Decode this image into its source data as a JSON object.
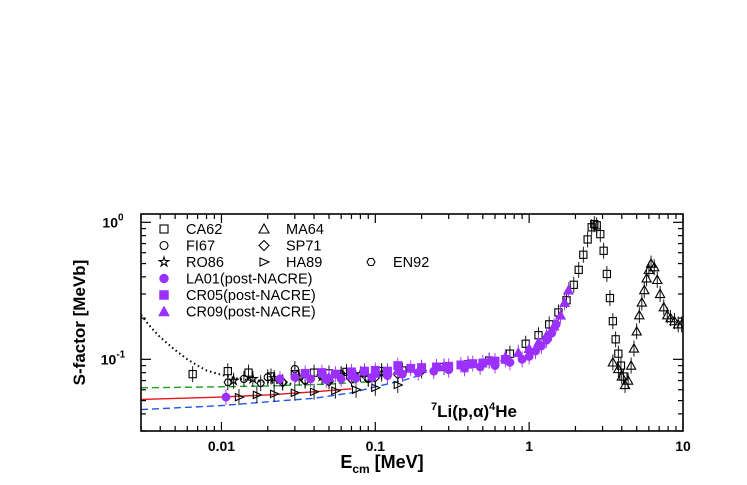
{
  "chart_data": {
    "type": "scatter",
    "title": "",
    "xlabel": {
      "base": "E",
      "sub": "cm",
      "rest": " [MeV]"
    },
    "ylabel": "S-factor [MeVb]",
    "xscale": "log",
    "yscale": "log",
    "xlim": [
      0.003,
      10
    ],
    "ylim": [
      0.03,
      1.15
    ],
    "x_ticks": [
      {
        "value": 0.01,
        "label": "0.01"
      },
      {
        "value": 0.1,
        "label": "0.1"
      },
      {
        "value": 1,
        "label": "1"
      },
      {
        "value": 10,
        "label": "10"
      }
    ],
    "y_ticks": [
      {
        "value": 0.1,
        "base": "10",
        "exp": "-1"
      },
      {
        "value": 1,
        "base": "10",
        "exp": "0"
      }
    ],
    "annotation": {
      "sup1": "7",
      "mid": "Li(p,",
      "greek": "α",
      "mid2": ")",
      "sup2": "4",
      "end": "He"
    },
    "legend_position": "top-left",
    "colors": {
      "post_nacre": "#9b30ff",
      "black": "#000000",
      "fit_red": "#e8161b",
      "fit_green": "#1e9e1e",
      "fit_blue": "#2255ee"
    },
    "series": [
      {
        "name": "CA62",
        "marker": "open-square",
        "color": "#000000",
        "points": [
          [
            0.0065,
            0.078
          ],
          [
            0.011,
            0.082
          ],
          [
            0.015,
            0.08
          ],
          [
            0.021,
            0.075
          ],
          [
            0.03,
            0.078
          ],
          [
            0.04,
            0.08
          ],
          [
            0.05,
            0.079
          ],
          [
            0.065,
            0.081
          ],
          [
            0.085,
            0.08
          ],
          [
            0.11,
            0.082
          ],
          [
            0.15,
            0.083
          ],
          [
            0.2,
            0.085
          ],
          [
            0.28,
            0.088
          ],
          [
            0.4,
            0.092
          ],
          [
            0.55,
            0.098
          ],
          [
            0.75,
            0.11
          ],
          [
            0.95,
            0.13
          ],
          [
            1.15,
            0.15
          ],
          [
            1.35,
            0.18
          ],
          [
            1.55,
            0.22
          ],
          [
            1.75,
            0.27
          ],
          [
            1.95,
            0.35
          ],
          [
            2.1,
            0.45
          ],
          [
            2.25,
            0.58
          ],
          [
            2.4,
            0.75
          ],
          [
            2.55,
            0.92
          ],
          [
            2.65,
            0.97
          ],
          [
            2.75,
            0.95
          ],
          [
            2.9,
            0.82
          ],
          [
            3.05,
            0.62
          ],
          [
            3.2,
            0.42
          ],
          [
            3.35,
            0.28
          ],
          [
            3.5,
            0.19
          ],
          [
            3.65,
            0.14
          ],
          [
            3.8,
            0.11
          ],
          [
            3.95,
            0.09
          ],
          [
            4.1,
            0.075
          ]
        ]
      },
      {
        "name": "MA64",
        "marker": "open-triangle",
        "color": "#000000",
        "points": [
          [
            3.5,
            0.095
          ],
          [
            3.8,
            0.085
          ],
          [
            4.0,
            0.075
          ],
          [
            4.2,
            0.065
          ],
          [
            4.4,
            0.07
          ],
          [
            4.6,
            0.09
          ],
          [
            4.8,
            0.12
          ],
          [
            5.0,
            0.16
          ],
          [
            5.2,
            0.21
          ],
          [
            5.4,
            0.26
          ],
          [
            5.6,
            0.32
          ],
          [
            5.8,
            0.39
          ],
          [
            6.0,
            0.45
          ],
          [
            6.2,
            0.5
          ],
          [
            6.5,
            0.47
          ],
          [
            6.8,
            0.38
          ],
          [
            7.1,
            0.3
          ],
          [
            7.5,
            0.24
          ],
          [
            7.9,
            0.21
          ],
          [
            8.3,
            0.2
          ],
          [
            8.8,
            0.19
          ],
          [
            9.3,
            0.18
          ],
          [
            9.8,
            0.18
          ]
        ]
      },
      {
        "name": "FI67",
        "marker": "open-circle",
        "color": "#000000",
        "points": [
          [
            0.014,
            0.072
          ],
          [
            0.02,
            0.074
          ],
          [
            0.03,
            0.085
          ],
          [
            0.045,
            0.075
          ],
          [
            0.06,
            0.078
          ],
          [
            0.09,
            0.072
          ],
          [
            0.12,
            0.08
          ]
        ]
      },
      {
        "name": "SP71",
        "marker": "open-diamond",
        "color": "#000000",
        "points": [
          [
            0.025,
            0.068
          ],
          [
            0.035,
            0.07
          ],
          [
            0.05,
            0.069
          ],
          [
            0.07,
            0.072
          ],
          [
            0.1,
            0.074
          ],
          [
            0.14,
            0.078
          ],
          [
            0.2,
            0.083
          ]
        ]
      },
      {
        "name": "RO86",
        "marker": "open-star",
        "color": "#000000",
        "points": [
          [
            0.012,
            0.07
          ],
          [
            0.016,
            0.072
          ],
          [
            0.022,
            0.073
          ],
          [
            0.032,
            0.074
          ],
          [
            0.045,
            0.075
          ],
          [
            0.06,
            0.077
          ],
          [
            0.08,
            0.078
          ],
          [
            0.11,
            0.079
          ]
        ]
      },
      {
        "name": "HA89",
        "marker": "open-triangle-right",
        "color": "#000000",
        "points": [
          [
            0.013,
            0.053
          ],
          [
            0.017,
            0.055
          ],
          [
            0.022,
            0.056
          ],
          [
            0.03,
            0.057
          ],
          [
            0.04,
            0.058
          ],
          [
            0.055,
            0.059
          ],
          [
            0.075,
            0.06
          ],
          [
            0.1,
            0.062
          ],
          [
            0.14,
            0.065
          ]
        ]
      },
      {
        "name": "EN92",
        "marker": "open-hexagon",
        "color": "#000000",
        "points": [
          [
            0.011,
            0.068
          ],
          [
            0.018,
            0.067
          ],
          [
            0.025,
            0.068
          ],
          [
            0.035,
            0.07
          ],
          [
            0.05,
            0.071
          ],
          [
            0.07,
            0.072
          ],
          [
            0.09,
            0.073
          ]
        ]
      },
      {
        "name": "LA01(post-NACRE)",
        "marker": "filled-circle",
        "color": "#9b30ff",
        "points": [
          [
            0.0107,
            0.053
          ],
          [
            0.024,
            0.072
          ],
          [
            0.03,
            0.074
          ],
          [
            0.038,
            0.072
          ],
          [
            0.048,
            0.071
          ],
          [
            0.06,
            0.072
          ],
          [
            0.075,
            0.073
          ],
          [
            0.095,
            0.074
          ],
          [
            0.12,
            0.076
          ],
          [
            0.15,
            0.078
          ],
          [
            0.19,
            0.08
          ],
          [
            0.24,
            0.082
          ],
          [
            0.3,
            0.084
          ],
          [
            0.38,
            0.086
          ],
          [
            0.48,
            0.088
          ],
          [
            0.6,
            0.09
          ],
          [
            0.75,
            0.095
          ],
          [
            0.9,
            0.1
          ],
          [
            1.0,
            0.105
          ],
          [
            1.1,
            0.115
          ],
          [
            1.2,
            0.125
          ],
          [
            1.3,
            0.138
          ],
          [
            1.4,
            0.155
          ],
          [
            1.5,
            0.18
          ]
        ]
      },
      {
        "name": "CR05(post-NACRE)",
        "marker": "filled-square",
        "color": "#9b30ff",
        "points": [
          [
            0.035,
            0.079
          ],
          [
            0.045,
            0.08
          ],
          [
            0.055,
            0.078
          ],
          [
            0.07,
            0.081
          ],
          [
            0.085,
            0.082
          ],
          [
            0.1,
            0.083
          ],
          [
            0.12,
            0.082
          ],
          [
            0.14,
            0.09
          ],
          [
            0.17,
            0.086
          ],
          [
            0.2,
            0.087
          ],
          [
            0.25,
            0.088
          ],
          [
            0.3,
            0.089
          ],
          [
            0.36,
            0.091
          ],
          [
            0.43,
            0.093
          ],
          [
            0.5,
            0.094
          ],
          [
            0.6,
            0.097
          ],
          [
            0.7,
            0.1
          ]
        ]
      },
      {
        "name": "CR09(post-NACRE)",
        "marker": "filled-triangle",
        "color": "#9b30ff",
        "points": [
          [
            0.05,
            0.074
          ],
          [
            0.07,
            0.076
          ],
          [
            0.1,
            0.079
          ],
          [
            0.14,
            0.083
          ],
          [
            0.2,
            0.086
          ],
          [
            0.28,
            0.089
          ],
          [
            0.4,
            0.093
          ],
          [
            0.55,
            0.098
          ],
          [
            0.7,
            0.104
          ],
          [
            0.85,
            0.112
          ],
          [
            1.0,
            0.12
          ],
          [
            1.15,
            0.133
          ],
          [
            1.3,
            0.15
          ],
          [
            1.45,
            0.175
          ],
          [
            1.6,
            0.21
          ],
          [
            1.7,
            0.26
          ],
          [
            1.8,
            0.32
          ]
        ]
      }
    ],
    "curves": [
      {
        "style": "dotted",
        "color": "#000000",
        "points": [
          [
            0.003,
            0.21
          ],
          [
            0.0035,
            0.17
          ],
          [
            0.004,
            0.145
          ],
          [
            0.005,
            0.117
          ],
          [
            0.006,
            0.1
          ],
          [
            0.007,
            0.09
          ],
          [
            0.008,
            0.083
          ],
          [
            0.01,
            0.077
          ],
          [
            0.013,
            0.072
          ],
          [
            0.02,
            0.068
          ],
          [
            0.03,
            0.066
          ]
        ]
      },
      {
        "style": "solid",
        "color": "#e8161b",
        "points": [
          [
            0.003,
            0.051
          ],
          [
            0.01,
            0.053
          ],
          [
            0.02,
            0.055
          ],
          [
            0.04,
            0.058
          ],
          [
            0.07,
            0.061
          ]
        ]
      },
      {
        "style": "dashed",
        "color": "#1e9e1e",
        "points": [
          [
            0.003,
            0.062
          ],
          [
            0.01,
            0.063
          ],
          [
            0.02,
            0.064
          ],
          [
            0.05,
            0.066
          ],
          [
            0.1,
            0.069
          ]
        ]
      },
      {
        "style": "dashed",
        "color": "#2255ee",
        "points": [
          [
            0.003,
            0.043
          ],
          [
            0.01,
            0.046
          ],
          [
            0.02,
            0.049
          ],
          [
            0.04,
            0.052
          ],
          [
            0.07,
            0.057
          ],
          [
            0.1,
            0.063
          ],
          [
            0.15,
            0.07
          ],
          [
            0.2,
            0.077
          ]
        ]
      }
    ]
  }
}
